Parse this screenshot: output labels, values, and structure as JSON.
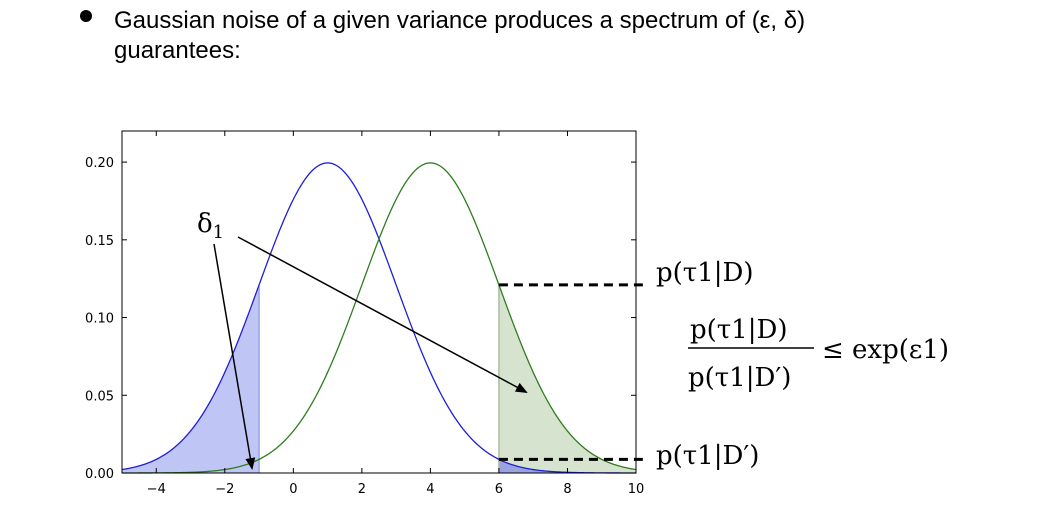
{
  "slide": {
    "bullet_text": "Gaussian noise of a given variance produces a spectrum of (ε, δ) guarantees:"
  },
  "chart_data": {
    "type": "line",
    "xlim": [
      -5,
      10
    ],
    "ylim": [
      0.0,
      0.22
    ],
    "xticks": [
      -4,
      -2,
      0,
      2,
      4,
      6,
      8,
      10
    ],
    "xtick_labels": [
      "−4",
      "−2",
      "0",
      "2",
      "4",
      "6",
      "8",
      "10"
    ],
    "yticks": [
      0.0,
      0.05,
      0.1,
      0.15,
      0.2
    ],
    "ytick_labels": [
      "0.00",
      "0.05",
      "0.10",
      "0.15",
      "0.20"
    ],
    "grid": false,
    "series": [
      {
        "mean": 1,
        "std": 2,
        "color": "#1f1fd6"
      },
      {
        "mean": 4,
        "std": 2,
        "color": "#2e7d1e"
      }
    ],
    "shaded_regions": [
      {
        "series": 0,
        "x_from": -5,
        "x_to": -1,
        "color": "#bfc6f5"
      },
      {
        "series": 1,
        "x_from": 6,
        "x_to": 10,
        "color": "#d6e3cf"
      },
      {
        "series": 0,
        "x_from": 6,
        "x_to": 10,
        "color": "#9aa3e0"
      }
    ],
    "cut_lines": [
      -1,
      6
    ],
    "dashed_levels": [
      {
        "series": 1,
        "x": 6,
        "x_end": 10.2
      },
      {
        "series": 0,
        "x": 6,
        "x_end": 10.2
      }
    ],
    "annotations": {
      "delta_label": "δ1",
      "p_top": "p(τ1|D)",
      "ratio_num": "p(τ1|D)",
      "ratio_den": "p(τ1|D′)",
      "ratio_rhs": "≤ exp(ε1)",
      "p_bottom": "p(τ1|D′)"
    }
  }
}
